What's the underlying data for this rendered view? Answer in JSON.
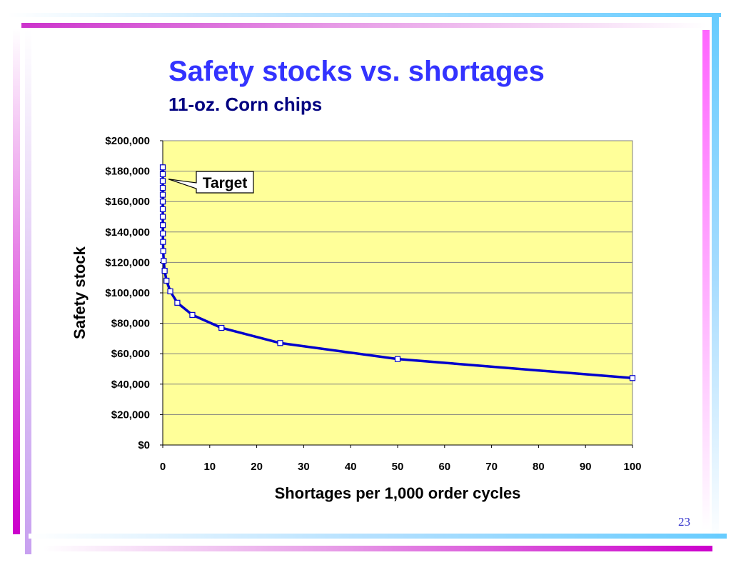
{
  "slide": {
    "title": "Safety stocks vs. shortages",
    "subtitle": "11-oz. Corn chips",
    "page_number": "23"
  },
  "colors": {
    "title": "#3333ff",
    "subtitle": "#000080",
    "plot_background": "#ffff99",
    "series_line": "#0000cc",
    "marker_fill": "#ffffff",
    "gridline": "#808080"
  },
  "chart_data": {
    "type": "line",
    "xlabel": "Shortages per 1,000 order cycles",
    "ylabel": "Safety stock",
    "xlim": [
      0,
      100
    ],
    "ylim": [
      0,
      200000
    ],
    "x_ticks": [
      0,
      10,
      20,
      30,
      40,
      50,
      60,
      70,
      80,
      90,
      100
    ],
    "x_tick_labels": [
      "0",
      "10",
      "20",
      "30",
      "40",
      "50",
      "60",
      "70",
      "80",
      "90",
      "100"
    ],
    "y_ticks": [
      0,
      20000,
      40000,
      60000,
      80000,
      100000,
      120000,
      140000,
      160000,
      180000,
      200000
    ],
    "y_tick_labels": [
      "$0",
      "$20,000",
      "$40,000",
      "$60,000",
      "$80,000",
      "$100,000",
      "$120,000",
      "$140,000",
      "$160,000",
      "$180,000",
      "$200,000"
    ],
    "grid": {
      "horizontal": true,
      "vertical": false
    },
    "legend": "none",
    "series": [
      {
        "marker": "hollow-square",
        "points": [
          {
            "x": 100,
            "y": 44000
          },
          {
            "x": 50,
            "y": 56500
          },
          {
            "x": 25,
            "y": 67000
          },
          {
            "x": 12.5,
            "y": 77000
          },
          {
            "x": 6.3,
            "y": 85500
          },
          {
            "x": 3.1,
            "y": 93500
          },
          {
            "x": 1.6,
            "y": 101000
          },
          {
            "x": 0.8,
            "y": 108000
          },
          {
            "x": 0.4,
            "y": 114500
          },
          {
            "x": 0.2,
            "y": 121000
          },
          {
            "x": 0.1,
            "y": 127500
          },
          {
            "x": 0.05,
            "y": 133500
          },
          {
            "x": 0.025,
            "y": 139000
          },
          {
            "x": 0.012,
            "y": 144500
          },
          {
            "x": 0.006,
            "y": 150000
          },
          {
            "x": 0.003,
            "y": 155000
          },
          {
            "x": 0.0015,
            "y": 160000
          },
          {
            "x": 0.0008,
            "y": 164500
          },
          {
            "x": 0.0004,
            "y": 169000
          },
          {
            "x": 0.0002,
            "y": 173500
          },
          {
            "x": 0.0001,
            "y": 178000
          },
          {
            "x": 5e-05,
            "y": 182500
          }
        ]
      }
    ],
    "annotations": [
      {
        "text": "Target",
        "points_to": {
          "x": 0,
          "y": 171000
        }
      }
    ]
  }
}
